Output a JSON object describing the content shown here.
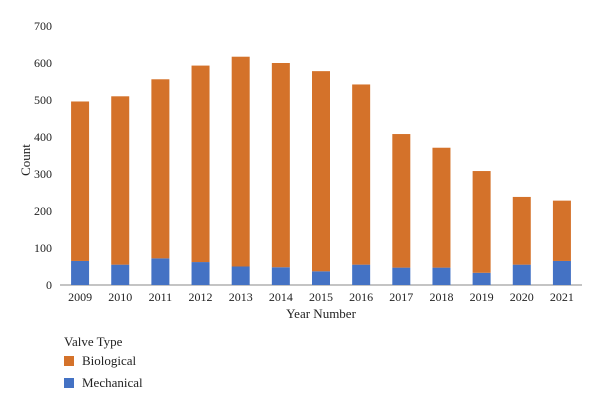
{
  "chart_data": {
    "type": "bar",
    "stacked": true,
    "categories": [
      "2009",
      "2010",
      "2011",
      "2012",
      "2013",
      "2014",
      "2015",
      "2016",
      "2017",
      "2018",
      "2019",
      "2020",
      "2021"
    ],
    "series": [
      {
        "name": "Mechanical",
        "color": "#4472C4",
        "values": [
          65,
          55,
          72,
          62,
          50,
          48,
          37,
          55,
          47,
          47,
          33,
          55,
          65
        ]
      },
      {
        "name": "Biological",
        "color": "#D4722A",
        "values": [
          431,
          455,
          484,
          531,
          567,
          552,
          541,
          487,
          361,
          324,
          275,
          183,
          163
        ]
      }
    ],
    "xlabel": "Year Number",
    "ylabel": "Count",
    "ylim": [
      0,
      700
    ],
    "yticks": [
      0,
      100,
      200,
      300,
      400,
      500,
      600,
      700
    ],
    "grid": false,
    "legend": {
      "title": "Valve Type",
      "placement": "bottom-left",
      "entries": [
        "Biological",
        "Mechanical"
      ]
    }
  }
}
